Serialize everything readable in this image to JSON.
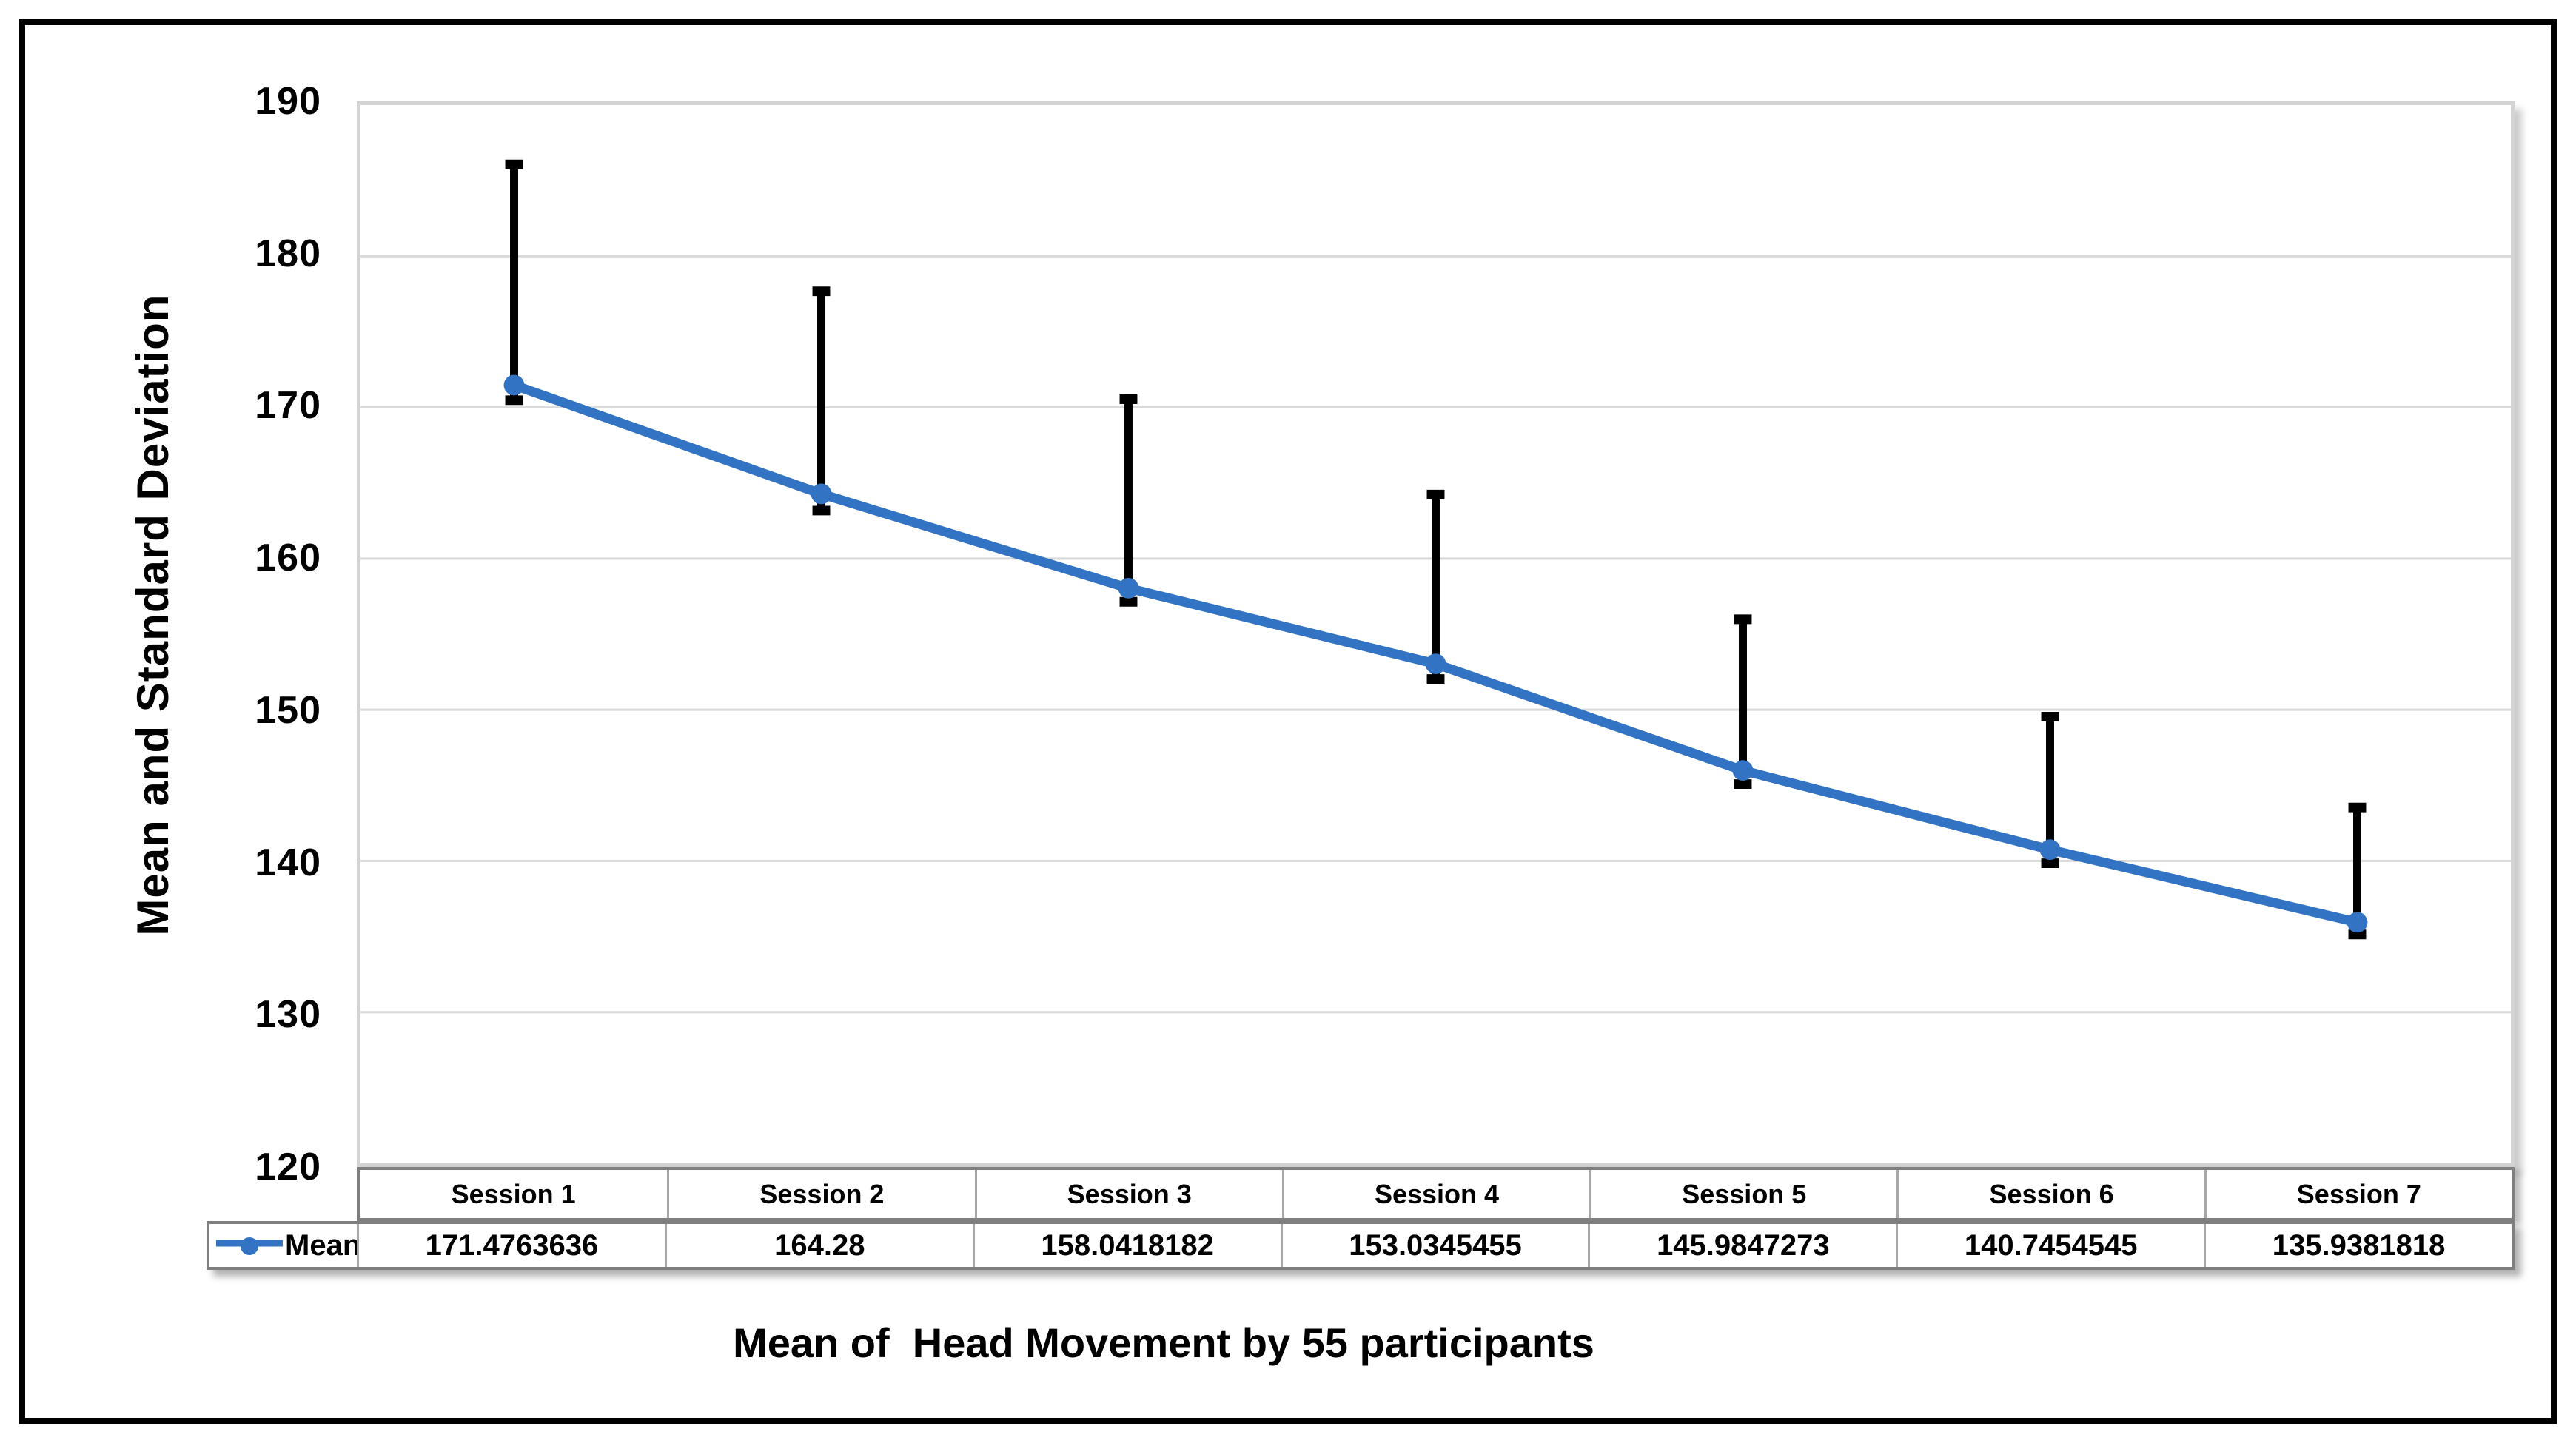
{
  "figure": {
    "background": "#FFFFFF",
    "frame_color": "#000000"
  },
  "chart_data": {
    "type": "line",
    "title": "",
    "xlabel": "Mean of  Head Movement by 55 participants",
    "ylabel": "Mean and Standard Deviation",
    "categories": [
      "Session 1",
      "Session 2",
      "Session 3",
      "Session 4",
      "Session 5",
      "Session 6",
      "Session 7"
    ],
    "series": [
      {
        "name": "Mean",
        "values": [
          171.4763636,
          164.28,
          158.0418182,
          153.0345455,
          145.9847273,
          140.7454545,
          135.9381818
        ],
        "display_values": [
          "171.4763636",
          "164.28",
          "158.0418182",
          "153.0345455",
          "145.9847273",
          "140.7454545",
          "135.9381818"
        ],
        "color": "#3273C4",
        "marker": "circle"
      }
    ],
    "error_bars": {
      "color": "#000000",
      "plus": [
        14.6,
        13.4,
        12.5,
        11.2,
        10.0,
        8.8,
        7.6
      ],
      "minus": [
        1.0,
        1.1,
        0.9,
        1.0,
        0.9,
        0.9,
        0.8
      ]
    },
    "ylim": [
      120,
      190
    ],
    "yticks": [
      190,
      180,
      170,
      160,
      150,
      140,
      130,
      120
    ],
    "grid": true,
    "gridline_color": "#D9D9D9",
    "plot_border_color": "#D3D3D3",
    "table_border_color": "#7F7F7F",
    "legend_position": "table-left",
    "data_table_shown": true
  }
}
